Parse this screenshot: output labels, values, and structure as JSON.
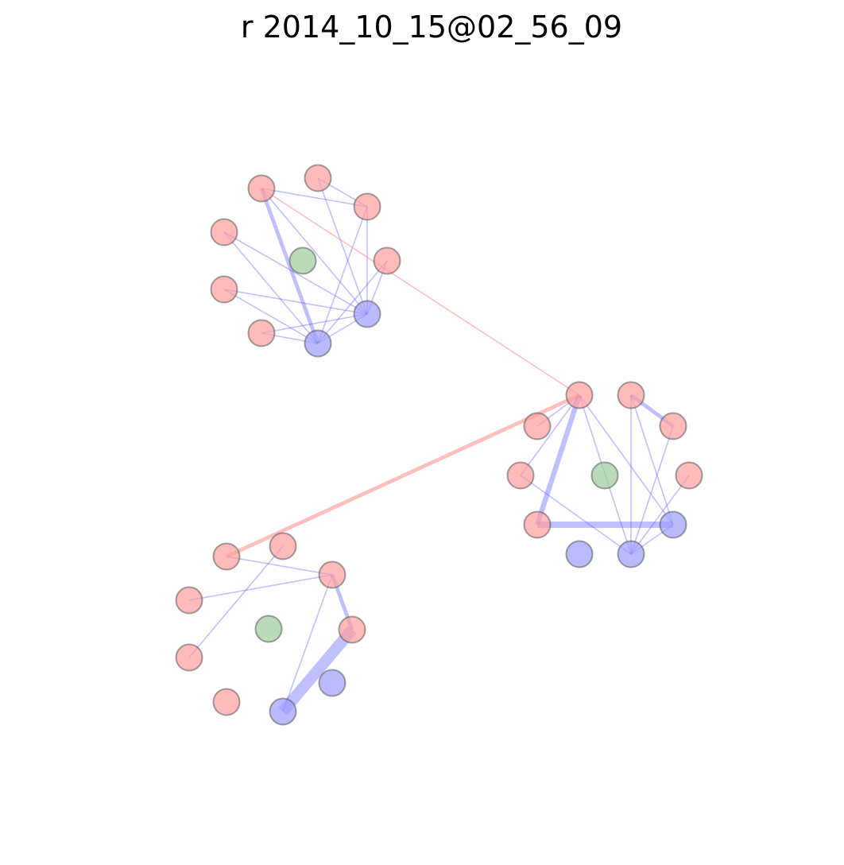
{
  "title": "r 2014_10_15@02_56_09",
  "colors": {
    "red_node": "#ff9c9c",
    "blue_node": "#9c9cff",
    "green_node": "#9ccc9c",
    "blue_edge": "#4a4aff",
    "red_edge": "#ff8a8a",
    "node_stroke": "#555555"
  },
  "graph": {
    "nodes": [
      {
        "id": "a1",
        "color": "red"
      },
      {
        "id": "a2",
        "color": "red"
      },
      {
        "id": "a3",
        "color": "red"
      },
      {
        "id": "a4",
        "color": "red"
      },
      {
        "id": "a5",
        "color": "red"
      },
      {
        "id": "a6",
        "color": "red"
      },
      {
        "id": "a7",
        "color": "red"
      },
      {
        "id": "a8",
        "color": "blue"
      },
      {
        "id": "a9",
        "color": "blue"
      },
      {
        "id": "ag",
        "color": "green"
      },
      {
        "id": "b1",
        "color": "red"
      },
      {
        "id": "b2",
        "color": "red"
      },
      {
        "id": "b3",
        "color": "red"
      },
      {
        "id": "b4",
        "color": "red"
      },
      {
        "id": "b5",
        "color": "red"
      },
      {
        "id": "b6",
        "color": "red"
      },
      {
        "id": "b7",
        "color": "red"
      },
      {
        "id": "b8",
        "color": "blue"
      },
      {
        "id": "b9",
        "color": "blue"
      },
      {
        "id": "b10",
        "color": "blue"
      },
      {
        "id": "bg",
        "color": "green"
      },
      {
        "id": "c1",
        "color": "red"
      },
      {
        "id": "c2",
        "color": "red"
      },
      {
        "id": "c3",
        "color": "red"
      },
      {
        "id": "c4",
        "color": "red"
      },
      {
        "id": "c5",
        "color": "red"
      },
      {
        "id": "c6",
        "color": "red"
      },
      {
        "id": "c7",
        "color": "red"
      },
      {
        "id": "c8",
        "color": "blue"
      },
      {
        "id": "c9",
        "color": "blue"
      },
      {
        "id": "cg",
        "color": "green"
      }
    ],
    "edges": [
      {
        "from": "a1",
        "to": "a3",
        "color": "blue",
        "weight": 1
      },
      {
        "from": "a1",
        "to": "a9",
        "color": "blue",
        "weight": 3
      },
      {
        "from": "a1",
        "to": "a8",
        "color": "blue",
        "weight": 1
      },
      {
        "from": "a2",
        "to": "a3",
        "color": "blue",
        "weight": 1
      },
      {
        "from": "a2",
        "to": "a8",
        "color": "blue",
        "weight": 1
      },
      {
        "from": "a3",
        "to": "a9",
        "color": "blue",
        "weight": 1
      },
      {
        "from": "a3",
        "to": "a8",
        "color": "blue",
        "weight": 1
      },
      {
        "from": "a4",
        "to": "a9",
        "color": "blue",
        "weight": 1
      },
      {
        "from": "a4",
        "to": "a8",
        "color": "blue",
        "weight": 1
      },
      {
        "from": "a5",
        "to": "a9",
        "color": "blue",
        "weight": 1
      },
      {
        "from": "a5",
        "to": "a8",
        "color": "blue",
        "weight": 1
      },
      {
        "from": "a6",
        "to": "a9",
        "color": "blue",
        "weight": 1
      },
      {
        "from": "a6",
        "to": "a8",
        "color": "blue",
        "weight": 1
      },
      {
        "from": "a7",
        "to": "a9",
        "color": "blue",
        "weight": 1
      },
      {
        "from": "a7",
        "to": "a8",
        "color": "blue",
        "weight": 1
      },
      {
        "from": "a9",
        "to": "a8",
        "color": "blue",
        "weight": 1
      },
      {
        "from": "b1",
        "to": "b2",
        "color": "blue",
        "weight": 1
      },
      {
        "from": "b1",
        "to": "b5",
        "color": "blue",
        "weight": 1
      },
      {
        "from": "b1",
        "to": "b7",
        "color": "blue",
        "weight": 4
      },
      {
        "from": "b1",
        "to": "b8",
        "color": "blue",
        "weight": 1
      },
      {
        "from": "b1",
        "to": "b9",
        "color": "blue",
        "weight": 1
      },
      {
        "from": "b3",
        "to": "b4",
        "color": "blue",
        "weight": 3
      },
      {
        "from": "b3",
        "to": "b8",
        "color": "blue",
        "weight": 1
      },
      {
        "from": "b3",
        "to": "b9",
        "color": "blue",
        "weight": 1
      },
      {
        "from": "b4",
        "to": "b8",
        "color": "blue",
        "weight": 1
      },
      {
        "from": "b5",
        "to": "b8",
        "color": "blue",
        "weight": 1
      },
      {
        "from": "b6",
        "to": "b8",
        "color": "blue",
        "weight": 1
      },
      {
        "from": "b7",
        "to": "b9",
        "color": "blue",
        "weight": 5
      },
      {
        "from": "b8",
        "to": "b9",
        "color": "blue",
        "weight": 1
      },
      {
        "from": "c1",
        "to": "c3",
        "color": "blue",
        "weight": 1
      },
      {
        "from": "c2",
        "to": "c5",
        "color": "blue",
        "weight": 1
      },
      {
        "from": "c3",
        "to": "c4",
        "color": "blue",
        "weight": 1
      },
      {
        "from": "c3",
        "to": "c6",
        "color": "blue",
        "weight": 3
      },
      {
        "from": "c3",
        "to": "c8",
        "color": "blue",
        "weight": 1
      },
      {
        "from": "c6",
        "to": "c8",
        "color": "blue",
        "weight": 9
      },
      {
        "from": "a1",
        "to": "b1",
        "color": "red",
        "weight": 1
      },
      {
        "from": "c1",
        "to": "b1",
        "color": "red",
        "weight": 3
      }
    ]
  }
}
